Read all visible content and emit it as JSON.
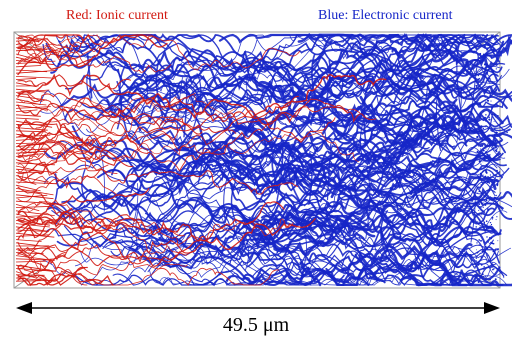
{
  "legend": {
    "ionic": {
      "label": "Red: Ionic current",
      "color": "#d21a12"
    },
    "electronic": {
      "label": "Blue: Electronic current",
      "color": "#1626c8"
    }
  },
  "scale_bar": {
    "label": "49.5 μm",
    "value": 49.5,
    "unit": "μm"
  },
  "colors": {
    "ionic": "#d21a12",
    "electronic": "#1626c8",
    "frame": "#9a9a9a",
    "arrow": "#000000"
  }
}
